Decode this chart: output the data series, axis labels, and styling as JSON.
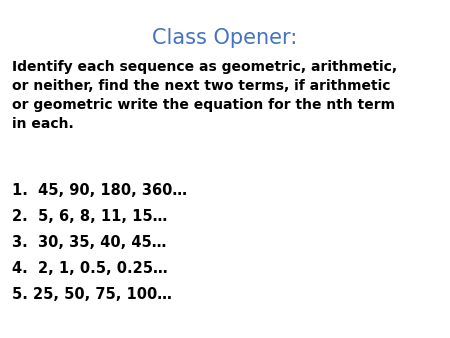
{
  "title": "Class Opener:",
  "title_color": "#4472C4",
  "title_fontsize": 15,
  "body_color": "#000000",
  "body_fontsize": 10,
  "description": "Identify each sequence as geometric, arithmetic,\nor neither, find the next two terms, if arithmetic\nor geometric write the equation for the nth term\nin each.",
  "items": [
    "1.  45, 90, 180, 360…",
    "2.  5, 6, 8, 11, 15…",
    "3.  30, 35, 40, 45…",
    "4.  2, 1, 0.5, 0.25…",
    "5. 25, 50, 75, 100…"
  ],
  "background_color": "#ffffff",
  "fig_width": 4.5,
  "fig_height": 3.38,
  "dpi": 100
}
